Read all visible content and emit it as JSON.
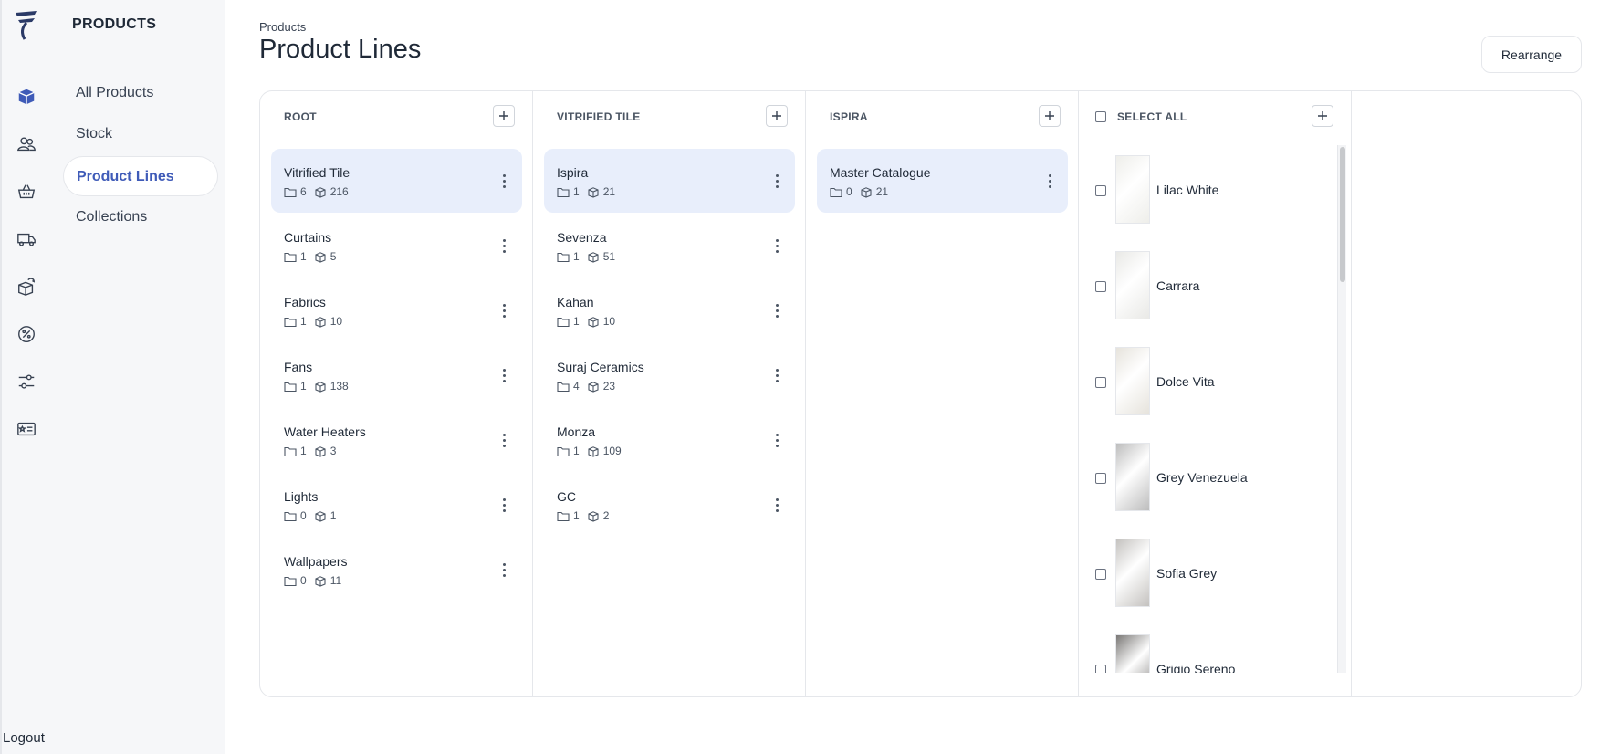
{
  "app": {
    "section": "PRODUCTS",
    "logout_label": "Logout"
  },
  "rail_icons": [
    "logo-icon",
    "products-icon",
    "customers-icon",
    "basket-icon",
    "delivery-truck-icon",
    "returns-icon",
    "discount-icon",
    "settings-sliders-icon",
    "id-card-icon"
  ],
  "nav": {
    "items": [
      {
        "label": "All Products",
        "active": false
      },
      {
        "label": "Stock",
        "active": false
      },
      {
        "label": "Product Lines",
        "active": true
      },
      {
        "label": "Collections",
        "active": false
      }
    ]
  },
  "header": {
    "breadcrumb": "Products",
    "title": "Product Lines",
    "rearrange_label": "Rearrange"
  },
  "columns": {
    "root": {
      "title": "ROOT",
      "items": [
        {
          "name": "Vitrified Tile",
          "folders": "6",
          "products": "216",
          "selected": true
        },
        {
          "name": "Curtains",
          "folders": "1",
          "products": "5"
        },
        {
          "name": "Fabrics",
          "folders": "1",
          "products": "10"
        },
        {
          "name": "Fans",
          "folders": "1",
          "products": "138"
        },
        {
          "name": "Water Heaters",
          "folders": "1",
          "products": "3"
        },
        {
          "name": "Lights",
          "folders": "0",
          "products": "1"
        },
        {
          "name": "Wallpapers",
          "folders": "0",
          "products": "11"
        }
      ]
    },
    "vitrified": {
      "title": "VITRIFIED TILE",
      "items": [
        {
          "name": "Ispira",
          "folders": "1",
          "products": "21",
          "selected": true
        },
        {
          "name": "Sevenza",
          "folders": "1",
          "products": "51"
        },
        {
          "name": "Kahan",
          "folders": "1",
          "products": "10"
        },
        {
          "name": "Suraj Ceramics",
          "folders": "4",
          "products": "23"
        },
        {
          "name": "Monza",
          "folders": "1",
          "products": "109"
        },
        {
          "name": "GC",
          "folders": "1",
          "products": "2"
        }
      ]
    },
    "ispira": {
      "title": "ISPIRA",
      "items": [
        {
          "name": "Master Catalogue",
          "folders": "0",
          "products": "21",
          "selected": true
        }
      ]
    },
    "products": {
      "select_all_label": "SELECT ALL",
      "items": [
        {
          "name": "Lilac White",
          "swatch": "#eeeeea"
        },
        {
          "name": "Carrara",
          "swatch": "#e9e9e6"
        },
        {
          "name": "Dolce Vita",
          "swatch": "#e6e3dc"
        },
        {
          "name": "Grey Venezuela",
          "swatch": "#bdbdbd"
        },
        {
          "name": "Sofia Grey",
          "swatch": "#c4c2bf"
        },
        {
          "name": "Grigio Sereno",
          "swatch": "#7a7876"
        }
      ]
    }
  },
  "colors": {
    "accent": "#3f5bb8",
    "selected_bg": "#e8eefb",
    "border": "#e5e7eb",
    "sidebar_bg": "#f6f7f9"
  }
}
